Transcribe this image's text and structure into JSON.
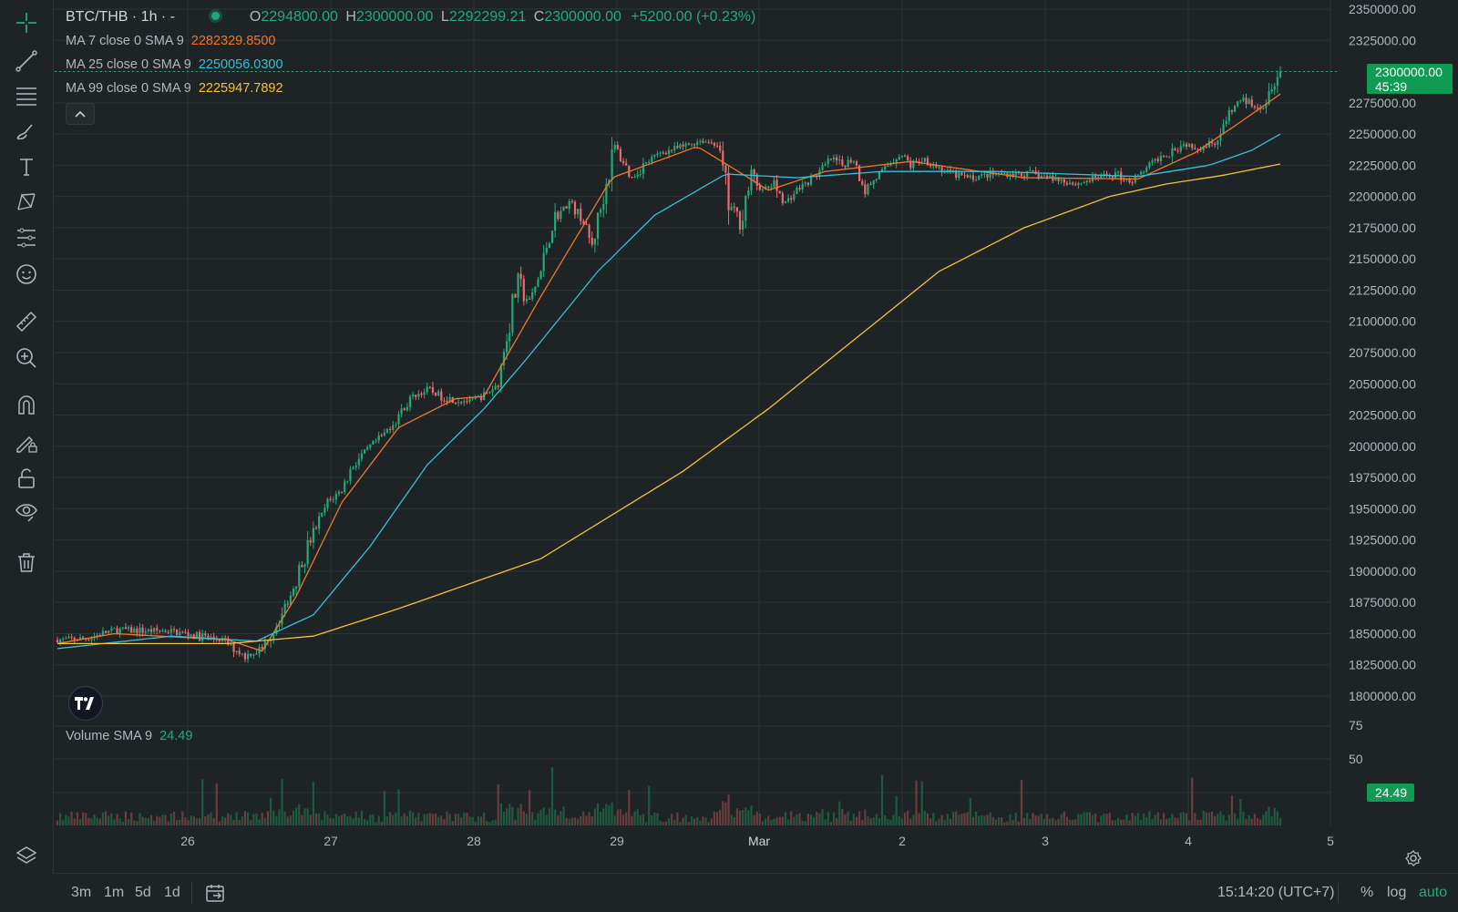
{
  "header": {
    "symbol": "BTC/THB · 1h · -",
    "o_label": "O",
    "o_value": "2294800.00",
    "h_label": "H",
    "h_value": "2300000.00",
    "l_label": "L",
    "l_value": "2292299.21",
    "c_label": "C",
    "c_value": "2300000.00",
    "change": "+5200.00 (+0.23%)"
  },
  "indicators": [
    {
      "label": "MA 7 close 0 SMA 9",
      "value": "2282329.8500",
      "color": "#f0762b"
    },
    {
      "label": "MA 25 close 0 SMA 9",
      "value": "2250056.0300",
      "color": "#35c1d9"
    },
    {
      "label": "MA 99 close 0 SMA 9",
      "value": "2225947.7892",
      "color": "#f4c13a"
    }
  ],
  "volume_legend": {
    "label": "Volume SMA 9",
    "value": "24.49",
    "color": "#22ab76"
  },
  "price_tag": {
    "price": "2300000.00",
    "countdown": "45:39"
  },
  "volume_tag": "24.49",
  "price_axis_labels": [
    "2350000.00",
    "2325000.00",
    "2275000.00",
    "2250000.00",
    "2225000.00",
    "2200000.00",
    "2175000.00",
    "2150000.00",
    "2125000.00",
    "2100000.00",
    "2075000.00",
    "2050000.00",
    "2025000.00",
    "2000000.00",
    "1975000.00",
    "1950000.00",
    "1925000.00",
    "1900000.00",
    "1875000.00",
    "1850000.00",
    "1825000.00",
    "1800000.00"
  ],
  "volume_axis_labels": [
    "75",
    "50"
  ],
  "time_axis_labels": [
    "26",
    "27",
    "28",
    "29",
    "Mar",
    "2",
    "3",
    "4",
    "5"
  ],
  "bottom_bar": {
    "ranges": [
      "3m",
      "1m",
      "5d",
      "1d"
    ],
    "clock": "15:14:20 (UTC+7)",
    "percent": "%",
    "log": "log",
    "auto": "auto"
  },
  "tools": [
    "crosshair-icon",
    "trend-line-icon",
    "fib-retracement-icon",
    "brush-icon",
    "text-icon",
    "pattern-icon",
    "prediction-icon",
    "emoji-icon",
    "ruler-icon",
    "zoom-in-icon",
    "magnet-icon",
    "lock-drawing-icon",
    "lock-icon",
    "eye-icon",
    "trash-icon"
  ],
  "colors": {
    "up": "#22ab76",
    "down": "#f0686e",
    "up_volume": "#1e5a41",
    "down_volume": "#6a3c3e",
    "grid": "#2c3336"
  },
  "chart_data": {
    "type": "candlestick",
    "interval": "1h",
    "ylim": [
      1800000,
      2350000
    ],
    "x_ticks": [
      "26",
      "27",
      "28",
      "29",
      "Mar",
      "2",
      "3",
      "4",
      "5"
    ],
    "volume_ylim": [
      0,
      80
    ],
    "last_close": 2300000,
    "price_keypoints": [
      [
        0,
        1845000
      ],
      [
        10,
        1846000
      ],
      [
        20,
        1853000
      ],
      [
        40,
        1852000
      ],
      [
        58,
        1845000
      ],
      [
        66,
        1832000
      ],
      [
        72,
        1838000
      ],
      [
        80,
        1870000
      ],
      [
        85,
        1900000
      ],
      [
        90,
        1930000
      ],
      [
        95,
        1955000
      ],
      [
        100,
        1965000
      ],
      [
        104,
        1985000
      ],
      [
        110,
        2000000
      ],
      [
        115,
        2010000
      ],
      [
        120,
        2025000
      ],
      [
        125,
        2040000
      ],
      [
        130,
        2045000
      ],
      [
        138,
        2038000
      ],
      [
        145,
        2036000
      ],
      [
        150,
        2040000
      ],
      [
        155,
        2050000
      ],
      [
        158,
        2090000
      ],
      [
        162,
        2130000
      ],
      [
        166,
        2115000
      ],
      [
        170,
        2140000
      ],
      [
        174,
        2180000
      ],
      [
        180,
        2195000
      ],
      [
        184,
        2185000
      ],
      [
        188,
        2160000
      ],
      [
        192,
        2200000
      ],
      [
        196,
        2240000
      ],
      [
        202,
        2215000
      ],
      [
        206,
        2225000
      ],
      [
        212,
        2235000
      ],
      [
        220,
        2240000
      ],
      [
        226,
        2245000
      ],
      [
        232,
        2242000
      ],
      [
        236,
        2195000
      ],
      [
        240,
        2180000
      ],
      [
        244,
        2215000
      ],
      [
        248,
        2205000
      ],
      [
        252,
        2210000
      ],
      [
        256,
        2195000
      ],
      [
        260,
        2205000
      ],
      [
        266,
        2215000
      ],
      [
        272,
        2230000
      ],
      [
        276,
        2225000
      ],
      [
        280,
        2230000
      ],
      [
        284,
        2205000
      ],
      [
        288,
        2215000
      ],
      [
        292,
        2225000
      ],
      [
        296,
        2235000
      ],
      [
        300,
        2225000
      ],
      [
        305,
        2230000
      ],
      [
        312,
        2220000
      ],
      [
        320,
        2215000
      ],
      [
        330,
        2218000
      ],
      [
        340,
        2218000
      ],
      [
        350,
        2215000
      ],
      [
        358,
        2210000
      ],
      [
        366,
        2215000
      ],
      [
        372,
        2218000
      ],
      [
        378,
        2212000
      ],
      [
        384,
        2225000
      ],
      [
        390,
        2235000
      ],
      [
        396,
        2242000
      ],
      [
        402,
        2240000
      ],
      [
        408,
        2245000
      ],
      [
        412,
        2265000
      ],
      [
        416,
        2278000
      ],
      [
        420,
        2275000
      ],
      [
        424,
        2272000
      ],
      [
        428,
        2298000
      ],
      [
        430,
        2300000
      ]
    ],
    "ma_series": [
      {
        "name": "MA 7",
        "color": "#f0762b",
        "last": 2282329.85,
        "keypoints": [
          [
            0,
            1842000
          ],
          [
            20,
            1850000
          ],
          [
            60,
            1845000
          ],
          [
            72,
            1836000
          ],
          [
            84,
            1880000
          ],
          [
            100,
            1955000
          ],
          [
            120,
            2015000
          ],
          [
            140,
            2038000
          ],
          [
            150,
            2040000
          ],
          [
            170,
            2120000
          ],
          [
            195,
            2215000
          ],
          [
            225,
            2240000
          ],
          [
            238,
            2222000
          ],
          [
            250,
            2205000
          ],
          [
            270,
            2220000
          ],
          [
            300,
            2228000
          ],
          [
            340,
            2215000
          ],
          [
            380,
            2214000
          ],
          [
            400,
            2235000
          ],
          [
            415,
            2258000
          ],
          [
            430,
            2282000
          ]
        ]
      },
      {
        "name": "MA 25",
        "color": "#35c1d9",
        "last": 2250056.03,
        "keypoints": [
          [
            0,
            1838000
          ],
          [
            40,
            1848000
          ],
          [
            70,
            1844000
          ],
          [
            90,
            1865000
          ],
          [
            110,
            1920000
          ],
          [
            130,
            1985000
          ],
          [
            150,
            2030000
          ],
          [
            165,
            2070000
          ],
          [
            190,
            2140000
          ],
          [
            210,
            2185000
          ],
          [
            235,
            2218000
          ],
          [
            260,
            2215000
          ],
          [
            290,
            2220000
          ],
          [
            330,
            2220000
          ],
          [
            380,
            2216000
          ],
          [
            405,
            2225000
          ],
          [
            420,
            2237000
          ],
          [
            430,
            2250000
          ]
        ]
      },
      {
        "name": "MA 99",
        "color": "#f4c13a",
        "last": 2225947.79,
        "keypoints": [
          [
            0,
            1842000
          ],
          [
            60,
            1842000
          ],
          [
            90,
            1848000
          ],
          [
            120,
            1870000
          ],
          [
            170,
            1910000
          ],
          [
            220,
            1980000
          ],
          [
            250,
            2030000
          ],
          [
            280,
            2085000
          ],
          [
            310,
            2140000
          ],
          [
            340,
            2175000
          ],
          [
            370,
            2200000
          ],
          [
            390,
            2210000
          ],
          [
            410,
            2217000
          ],
          [
            430,
            2226000
          ]
        ]
      }
    ]
  }
}
